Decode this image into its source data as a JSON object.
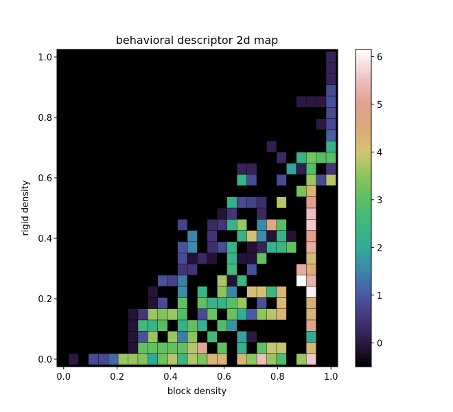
{
  "chart_data": {
    "type": "heatmap",
    "title": "behavioral descriptor 2d map",
    "xlabel": "block density",
    "ylabel": "rigid density",
    "xlim": [
      -0.025,
      1.025
    ],
    "ylim": [
      -0.025,
      1.025
    ],
    "x_ticks": [
      "0.0",
      "0.2",
      "0.4",
      "0.6",
      "0.8",
      "1.0"
    ],
    "y_ticks": [
      "0.0",
      "0.2",
      "0.4",
      "0.6",
      "0.8",
      "1.0"
    ],
    "colorbar": {
      "range": [
        -0.5,
        6.15
      ],
      "ticks": [
        "0",
        "1",
        "2",
        "3",
        "4",
        "5",
        "6"
      ],
      "colormap": "tab20b-like (black → purple → blue → teal → green → tan → salmon → white)"
    },
    "grid": false,
    "n_bins": 21,
    "note_empty_value": "cells not listed are empty (drawn black)",
    "cells": [
      [
        1,
        0,
        0.0
      ],
      [
        3,
        0,
        0.8
      ],
      [
        4,
        0,
        0.8
      ],
      [
        5,
        0,
        1.2
      ],
      [
        6,
        0,
        3.6
      ],
      [
        7,
        0,
        3.6
      ],
      [
        8,
        0,
        3.4
      ],
      [
        9,
        0,
        2.0
      ],
      [
        10,
        0,
        3.2
      ],
      [
        11,
        0,
        3.8
      ],
      [
        12,
        0,
        2.4
      ],
      [
        13,
        0,
        3.8
      ],
      [
        14,
        0,
        3.4
      ],
      [
        15,
        0,
        4.3
      ],
      [
        16,
        0,
        4.3
      ],
      [
        20,
        0,
        5.5
      ],
      [
        18,
        0,
        4.3
      ],
      [
        19,
        0,
        3.5
      ],
      [
        21,
        0,
        3.6
      ],
      [
        22,
        0,
        2.8
      ],
      [
        24,
        0,
        3.6
      ],
      [
        25,
        0,
        5.6
      ],
      [
        7,
        1,
        -0.1
      ],
      [
        8,
        1,
        3.1
      ],
      [
        9,
        1,
        3.1
      ],
      [
        10,
        1,
        3.1
      ],
      [
        11,
        1,
        3.1
      ],
      [
        12,
        1,
        3.1
      ],
      [
        13,
        1,
        3.8
      ],
      [
        14,
        1,
        5.1
      ],
      [
        16,
        1,
        3.1
      ],
      [
        18,
        1,
        2.2
      ],
      [
        20,
        1,
        3.1
      ],
      [
        21,
        1,
        3.9
      ],
      [
        22,
        1,
        3.9
      ],
      [
        25,
        1,
        4.2
      ],
      [
        7,
        2,
        -0.1
      ],
      [
        8,
        2,
        0.9
      ],
      [
        9,
        2,
        3.6
      ],
      [
        11,
        2,
        3.6
      ],
      [
        12,
        2,
        1.4
      ],
      [
        13,
        2,
        3.5
      ],
      [
        15,
        2,
        2.6
      ],
      [
        18,
        2,
        1.9
      ],
      [
        19,
        2,
        0.0
      ],
      [
        25,
        2,
        2.0
      ],
      [
        7,
        3,
        -0.1
      ],
      [
        8,
        3,
        2.6
      ],
      [
        9,
        3,
        2.4
      ],
      [
        10,
        3,
        3.0
      ],
      [
        12,
        3,
        2.3
      ],
      [
        13,
        3,
        3.1
      ],
      [
        14,
        3,
        2.2
      ],
      [
        16,
        3,
        2.9
      ],
      [
        17,
        3,
        1.7
      ],
      [
        25,
        3,
        4.9
      ],
      [
        7,
        4,
        -0.1
      ],
      [
        8,
        4,
        0.5
      ],
      [
        9,
        4,
        3.6
      ],
      [
        10,
        4,
        3.4
      ],
      [
        11,
        4,
        3.6
      ],
      [
        12,
        4,
        2.9
      ],
      [
        14,
        4,
        0.8
      ],
      [
        15,
        4,
        3.2
      ],
      [
        17,
        4,
        3.2
      ],
      [
        18,
        4,
        2.1
      ],
      [
        19,
        4,
        1.0
      ],
      [
        20,
        4,
        3.5
      ],
      [
        21,
        4,
        3.8
      ],
      [
        22,
        4,
        4.3
      ],
      [
        25,
        4,
        4.3
      ],
      [
        9,
        5,
        -0.1
      ],
      [
        10,
        5,
        0.8
      ],
      [
        12,
        5,
        3.1
      ],
      [
        14,
        5,
        3.1
      ],
      [
        15,
        5,
        2.3
      ],
      [
        16,
        5,
        2.3
      ],
      [
        17,
        5,
        3.0
      ],
      [
        18,
        5,
        3.6
      ],
      [
        20,
        5,
        0.9
      ],
      [
        22,
        5,
        4.2
      ],
      [
        25,
        5,
        4.4
      ],
      [
        9,
        6,
        -0.1
      ],
      [
        12,
        6,
        1.6
      ],
      [
        14,
        6,
        2.4
      ],
      [
        16,
        6,
        3.5
      ],
      [
        17,
        6,
        1.5
      ],
      [
        19,
        6,
        4.1
      ],
      [
        20,
        6,
        4.1
      ],
      [
        21,
        6,
        2.4
      ],
      [
        22,
        6,
        4.3
      ],
      [
        25,
        6,
        6.0
      ],
      [
        10,
        7,
        0.9
      ],
      [
        11,
        7,
        0.7
      ],
      [
        12,
        7,
        1.4
      ],
      [
        16,
        7,
        3.7
      ],
      [
        17,
        7,
        -0.1
      ],
      [
        18,
        7,
        2.4
      ],
      [
        24,
        7,
        6.2
      ],
      [
        25,
        7,
        5.3
      ],
      [
        12,
        8,
        0.5
      ],
      [
        13,
        8,
        0.5
      ],
      [
        17,
        8,
        2.6
      ],
      [
        19,
        8,
        0.9
      ],
      [
        24,
        8,
        5.2
      ],
      [
        25,
        8,
        4.4
      ],
      [
        12,
        9,
        0.8
      ],
      [
        13,
        9,
        -0.1
      ],
      [
        14,
        9,
        0.3
      ],
      [
        15,
        9,
        -0.1
      ],
      [
        17,
        9,
        2.3
      ],
      [
        18,
        9,
        -0.1
      ],
      [
        19,
        9,
        -0.1
      ],
      [
        20,
        9,
        3.1
      ],
      [
        25,
        9,
        4.2
      ],
      [
        12,
        10,
        0.9
      ],
      [
        13,
        10,
        1.6
      ],
      [
        15,
        10,
        0.4
      ],
      [
        16,
        10,
        0.8
      ],
      [
        17,
        10,
        2.2
      ],
      [
        19,
        10,
        -0.1
      ],
      [
        20,
        10,
        0.2
      ],
      [
        21,
        10,
        2.2
      ],
      [
        22,
        10,
        2.4
      ],
      [
        23,
        10,
        3.1
      ],
      [
        25,
        10,
        5.2
      ],
      [
        13,
        11,
        1.5
      ],
      [
        15,
        11,
        0.5
      ],
      [
        18,
        11,
        2.3
      ],
      [
        19,
        11,
        4.1
      ],
      [
        20,
        11,
        1.6
      ],
      [
        21,
        11,
        -0.1
      ],
      [
        22,
        11,
        2.3
      ],
      [
        23,
        11,
        -0.1
      ],
      [
        25,
        11,
        5.0
      ],
      [
        12,
        12,
        0.7
      ],
      [
        15,
        12,
        0.3
      ],
      [
        16,
        12,
        0.5
      ],
      [
        17,
        12,
        2.3
      ],
      [
        18,
        12,
        3.6
      ],
      [
        20,
        12,
        1.6
      ],
      [
        21,
        12,
        4.6
      ],
      [
        22,
        12,
        3.0
      ],
      [
        25,
        12,
        5.6
      ],
      [
        16,
        13,
        -0.1
      ],
      [
        17,
        13,
        0.5
      ],
      [
        20,
        13,
        0.3
      ],
      [
        25,
        13,
        5.5
      ],
      [
        17,
        14,
        2.2
      ],
      [
        18,
        14,
        0.8
      ],
      [
        19,
        14,
        0.7
      ],
      [
        20,
        14,
        0.4
      ],
      [
        22,
        14,
        3.8
      ],
      [
        25,
        14,
        5.0
      ],
      [
        24,
        15,
        3.3
      ],
      [
        25,
        15,
        4.3
      ],
      [
        18,
        16,
        2.3
      ],
      [
        19,
        16,
        0.8
      ],
      [
        22,
        16,
        0.8
      ],
      [
        25,
        16,
        3.6
      ],
      [
        26,
        16,
        0.8
      ],
      [
        27,
        16,
        3.8
      ],
      [
        18,
        17,
        0.2
      ],
      [
        19,
        17,
        0.2
      ],
      [
        23,
        17,
        1.9
      ],
      [
        24,
        17,
        0.1
      ],
      [
        25,
        17,
        2.9
      ],
      [
        27,
        17,
        0.5
      ],
      [
        22,
        18,
        0.3
      ],
      [
        24,
        18,
        2.3
      ],
      [
        25,
        18,
        3.3
      ],
      [
        26,
        18,
        3.0
      ],
      [
        27,
        18,
        3.0
      ],
      [
        21,
        19,
        0.1
      ],
      [
        27,
        19,
        2.2
      ],
      [
        27,
        20,
        1.1
      ],
      [
        26,
        21,
        0.0
      ],
      [
        27,
        21,
        0.8
      ],
      [
        27,
        22,
        0.8
      ],
      [
        24,
        23,
        0.0
      ],
      [
        25,
        23,
        0.0
      ],
      [
        26,
        23,
        0.0
      ],
      [
        27,
        23,
        0.9
      ],
      [
        27,
        24,
        0.8
      ],
      [
        27,
        25,
        0.2
      ],
      [
        27,
        26,
        0.2
      ],
      [
        27,
        27,
        0.2
      ]
    ]
  }
}
